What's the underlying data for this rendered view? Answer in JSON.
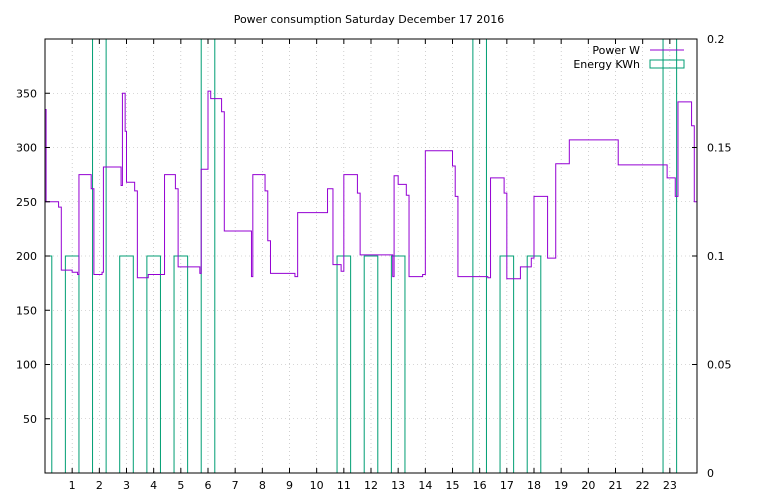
{
  "chart_data": {
    "type": "line",
    "title": "Power consumption Saturday December 17 2016",
    "xlabel": "",
    "ylabel": "",
    "x_range": [
      0,
      24
    ],
    "x_ticks": [
      1,
      2,
      3,
      4,
      5,
      6,
      7,
      8,
      9,
      10,
      11,
      12,
      13,
      14,
      15,
      16,
      17,
      18,
      19,
      20,
      21,
      22,
      23
    ],
    "y_left_range": [
      0,
      400
    ],
    "y_left_ticks": [
      50,
      100,
      150,
      200,
      250,
      300,
      350
    ],
    "y_right_range": [
      0,
      0.2
    ],
    "y_right_ticks": [
      "0",
      "0.05",
      "0.1",
      "0.15",
      "0.2"
    ],
    "grid": true,
    "legend_position": "top-right",
    "colors": {
      "power": "#9400d3",
      "energy": "#009e73"
    },
    "series": [
      {
        "name": "Power W",
        "axis": "left",
        "style": "steps",
        "points": [
          [
            0.0,
            335
          ],
          [
            0.04,
            250
          ],
          [
            0.5,
            245
          ],
          [
            0.6,
            187
          ],
          [
            1.0,
            185
          ],
          [
            1.2,
            183
          ],
          [
            1.25,
            275
          ],
          [
            1.7,
            262
          ],
          [
            1.8,
            183
          ],
          [
            2.1,
            185
          ],
          [
            2.15,
            282
          ],
          [
            2.8,
            265
          ],
          [
            2.85,
            350
          ],
          [
            2.95,
            315
          ],
          [
            3.0,
            268
          ],
          [
            3.3,
            260
          ],
          [
            3.4,
            180
          ],
          [
            3.8,
            183
          ],
          [
            4.4,
            275
          ],
          [
            4.8,
            262
          ],
          [
            4.9,
            190
          ],
          [
            5.7,
            184
          ],
          [
            5.75,
            280
          ],
          [
            6.0,
            352
          ],
          [
            6.1,
            345
          ],
          [
            6.5,
            333
          ],
          [
            6.6,
            223
          ],
          [
            7.6,
            181
          ],
          [
            7.65,
            275
          ],
          [
            8.1,
            260
          ],
          [
            8.2,
            214
          ],
          [
            8.3,
            184
          ],
          [
            9.2,
            181
          ],
          [
            9.3,
            240
          ],
          [
            10.4,
            262
          ],
          [
            10.6,
            192
          ],
          [
            10.9,
            186
          ],
          [
            11.0,
            275
          ],
          [
            11.5,
            258
          ],
          [
            11.6,
            201
          ],
          [
            12.8,
            181
          ],
          [
            12.85,
            274
          ],
          [
            13.0,
            266
          ],
          [
            13.3,
            256
          ],
          [
            13.4,
            181
          ],
          [
            13.9,
            183
          ],
          [
            14.0,
            297
          ],
          [
            15.0,
            283
          ],
          [
            15.1,
            255
          ],
          [
            15.2,
            181
          ],
          [
            16.3,
            180
          ],
          [
            16.4,
            272
          ],
          [
            16.9,
            258
          ],
          [
            17.0,
            179
          ],
          [
            17.5,
            190
          ],
          [
            17.9,
            198
          ],
          [
            18.0,
            255
          ],
          [
            18.5,
            198
          ],
          [
            18.8,
            285
          ],
          [
            19.3,
            307
          ],
          [
            21.1,
            284
          ],
          [
            22.9,
            272
          ],
          [
            23.2,
            255
          ],
          [
            23.3,
            342
          ],
          [
            23.8,
            320
          ],
          [
            23.9,
            250
          ]
        ]
      },
      {
        "name": "Energy KWh",
        "axis": "right",
        "style": "boxes",
        "boxes": [
          {
            "start": 0.0,
            "end": 0.25,
            "value": 0.1
          },
          {
            "start": 0.75,
            "end": 1.25,
            "value": 0.1
          },
          {
            "start": 1.75,
            "end": 2.25,
            "value": 0.2
          },
          {
            "start": 2.75,
            "end": 3.25,
            "value": 0.1
          },
          {
            "start": 3.75,
            "end": 4.25,
            "value": 0.1
          },
          {
            "start": 4.75,
            "end": 5.25,
            "value": 0.1
          },
          {
            "start": 5.75,
            "end": 6.25,
            "value": 0.2
          },
          {
            "start": 10.75,
            "end": 11.25,
            "value": 0.1
          },
          {
            "start": 11.75,
            "end": 12.25,
            "value": 0.1
          },
          {
            "start": 12.75,
            "end": 13.25,
            "value": 0.1
          },
          {
            "start": 15.75,
            "end": 16.25,
            "value": 0.2
          },
          {
            "start": 16.75,
            "end": 17.25,
            "value": 0.1
          },
          {
            "start": 17.75,
            "end": 18.25,
            "value": 0.1
          },
          {
            "start": 22.75,
            "end": 23.25,
            "value": 0.2
          }
        ]
      }
    ]
  }
}
